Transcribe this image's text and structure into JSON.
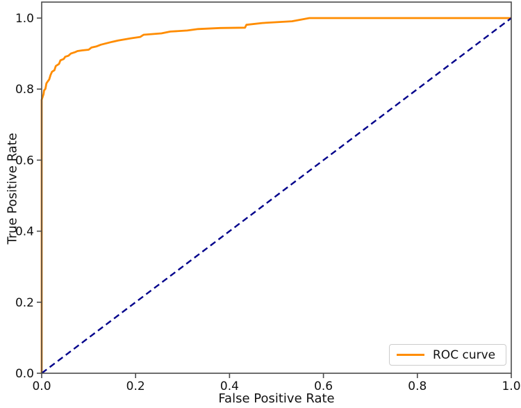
{
  "chart_data": {
    "type": "line",
    "title": "",
    "xlabel": "False Positive Rate",
    "ylabel": "True Positive Rate",
    "xlim": [
      0.0,
      1.0
    ],
    "ylim": [
      0.0,
      1.045
    ],
    "grid": false,
    "axis_color": "#4a4a4a",
    "tick_label_color": "#111111",
    "xticks": {
      "values": [
        0.0,
        0.2,
        0.4,
        0.6,
        0.8,
        1.0
      ],
      "labels": [
        "0.0",
        "0.2",
        "0.4",
        "0.6",
        "0.8",
        "1.0"
      ]
    },
    "yticks": {
      "values": [
        0.0,
        0.2,
        0.4,
        0.6,
        0.8,
        1.0
      ],
      "labels": [
        "0.0",
        "0.2",
        "0.4",
        "0.6",
        "0.8",
        "1.0"
      ]
    },
    "legend": {
      "position": "lower right",
      "entries": [
        {
          "label": "ROC curve",
          "color": "#FF8C00",
          "linestyle": "solid"
        }
      ]
    },
    "series": [
      {
        "name": "ROC curve",
        "color": "#FF8C00",
        "linestyle": "solid",
        "linewidth": 2.8,
        "points": [
          [
            0.0,
            0.0
          ],
          [
            0.0,
            0.77
          ],
          [
            0.004,
            0.786
          ],
          [
            0.005,
            0.796
          ],
          [
            0.008,
            0.801
          ],
          [
            0.01,
            0.816
          ],
          [
            0.013,
            0.822
          ],
          [
            0.016,
            0.827
          ],
          [
            0.019,
            0.84
          ],
          [
            0.022,
            0.849
          ],
          [
            0.027,
            0.853
          ],
          [
            0.03,
            0.865
          ],
          [
            0.037,
            0.871
          ],
          [
            0.04,
            0.881
          ],
          [
            0.047,
            0.885
          ],
          [
            0.05,
            0.891
          ],
          [
            0.057,
            0.894
          ],
          [
            0.062,
            0.9
          ],
          [
            0.071,
            0.904
          ],
          [
            0.076,
            0.907
          ],
          [
            0.086,
            0.909
          ],
          [
            0.1,
            0.911
          ],
          [
            0.106,
            0.917
          ],
          [
            0.116,
            0.92
          ],
          [
            0.126,
            0.925
          ],
          [
            0.15,
            0.933
          ],
          [
            0.163,
            0.937
          ],
          [
            0.19,
            0.943
          ],
          [
            0.21,
            0.947
          ],
          [
            0.217,
            0.953
          ],
          [
            0.255,
            0.957
          ],
          [
            0.274,
            0.962
          ],
          [
            0.31,
            0.965
          ],
          [
            0.333,
            0.969
          ],
          [
            0.38,
            0.972
          ],
          [
            0.433,
            0.973
          ],
          [
            0.436,
            0.981
          ],
          [
            0.47,
            0.986
          ],
          [
            0.533,
            0.991
          ],
          [
            0.57,
            1.0
          ],
          [
            1.0,
            1.0
          ]
        ]
      },
      {
        "name": "chance diagonal",
        "color": "#00008B",
        "linestyle": "dashed",
        "linewidth": 2.4,
        "dash": "9,5.5",
        "points": [
          [
            0.0,
            0.0
          ],
          [
            1.0,
            1.0
          ]
        ]
      }
    ]
  }
}
